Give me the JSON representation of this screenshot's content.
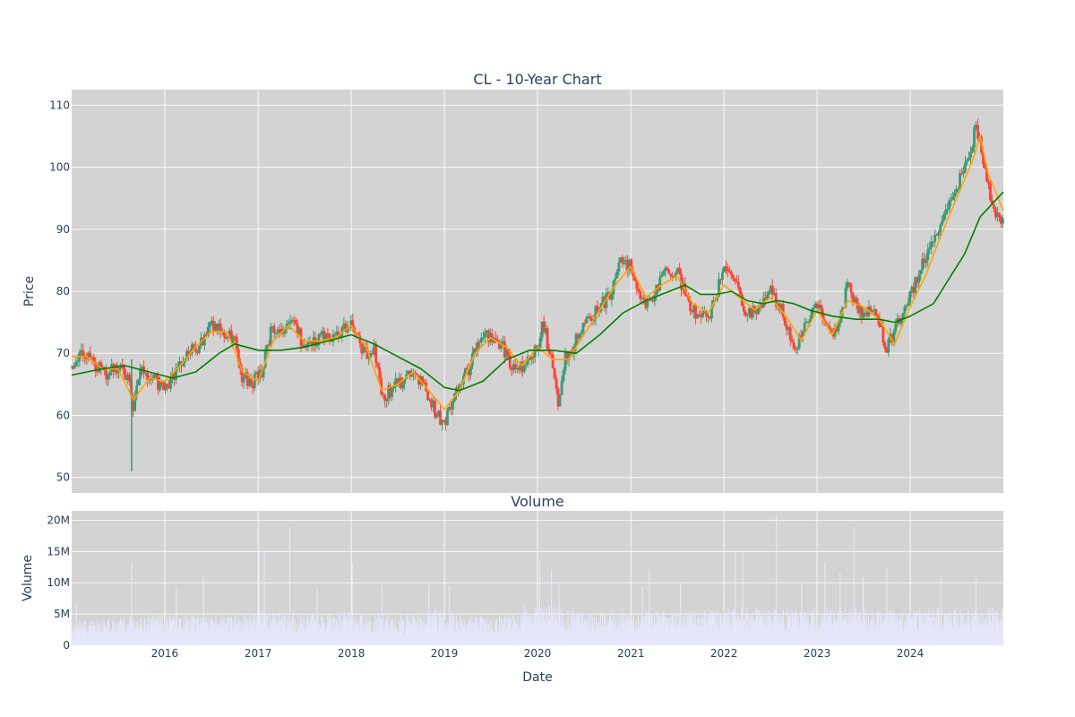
{
  "chart_data": [
    {
      "type": "candlestick",
      "title": "CL - 10-Year Chart",
      "xlabel": "",
      "ylabel": "Price",
      "xlim": [
        "2015-01-01",
        "2024-12-31"
      ],
      "ylim": [
        47.5,
        112.5
      ],
      "yticks": [
        50,
        60,
        70,
        80,
        90,
        100,
        110
      ],
      "xticks": [
        "2016",
        "2017",
        "2018",
        "2019",
        "2020",
        "2021",
        "2022",
        "2023",
        "2024"
      ],
      "grid": true,
      "legend": "none",
      "colors": {
        "up": "#3d9970",
        "down": "#ff4136",
        "ma_short": "#ffa500",
        "ma_long": "#008000",
        "background": "#d3d3d3"
      },
      "price_path": [
        [
          "2015-01-01",
          68
        ],
        [
          "2015-02-15",
          70
        ],
        [
          "2015-04-01",
          68.5
        ],
        [
          "2015-05-15",
          66.5
        ],
        [
          "2015-07-01",
          68
        ],
        [
          "2015-08-15",
          66
        ],
        [
          "2015-08-25",
          61
        ],
        [
          "2015-10-01",
          67
        ],
        [
          "2015-11-15",
          66
        ],
        [
          "2016-01-01",
          64
        ],
        [
          "2016-02-15",
          67
        ],
        [
          "2016-04-01",
          70
        ],
        [
          "2016-05-15",
          71
        ],
        [
          "2016-07-01",
          74.5
        ],
        [
          "2016-08-15",
          74
        ],
        [
          "2016-10-01",
          72
        ],
        [
          "2016-11-01",
          66
        ],
        [
          "2016-12-15",
          65.5
        ],
        [
          "2017-01-15",
          67
        ],
        [
          "2017-02-15",
          73
        ],
        [
          "2017-04-01",
          74
        ],
        [
          "2017-05-15",
          75.5
        ],
        [
          "2017-07-01",
          71
        ],
        [
          "2017-08-15",
          72
        ],
        [
          "2017-10-01",
          73
        ],
        [
          "2017-11-15",
          72.5
        ],
        [
          "2018-01-01",
          75.5
        ],
        [
          "2018-02-15",
          70
        ],
        [
          "2018-04-01",
          70.5
        ],
        [
          "2018-05-01",
          63
        ],
        [
          "2018-07-01",
          65
        ],
        [
          "2018-09-01",
          67
        ],
        [
          "2018-10-15",
          65
        ],
        [
          "2018-12-01",
          60
        ],
        [
          "2019-01-01",
          59
        ],
        [
          "2019-02-15",
          64
        ],
        [
          "2019-04-01",
          67
        ],
        [
          "2019-05-15",
          72
        ],
        [
          "2019-07-01",
          73
        ],
        [
          "2019-08-15",
          71.5
        ],
        [
          "2019-10-01",
          67
        ],
        [
          "2019-11-15",
          68.5
        ],
        [
          "2020-01-01",
          70.5
        ],
        [
          "2020-01-20",
          75
        ],
        [
          "2020-02-15",
          71
        ],
        [
          "2020-03-20",
          62
        ],
        [
          "2020-04-15",
          69
        ],
        [
          "2020-06-01",
          72
        ],
        [
          "2020-07-15",
          75
        ],
        [
          "2020-09-01",
          78
        ],
        [
          "2020-10-15",
          79
        ],
        [
          "2020-11-20",
          85
        ],
        [
          "2021-01-01",
          84
        ],
        [
          "2021-02-15",
          78
        ],
        [
          "2021-04-01",
          79
        ],
        [
          "2021-05-15",
          83
        ],
        [
          "2021-07-01",
          83
        ],
        [
          "2021-08-15",
          78
        ],
        [
          "2021-10-01",
          76
        ],
        [
          "2021-11-15",
          77
        ],
        [
          "2022-01-01",
          84
        ],
        [
          "2022-02-15",
          82
        ],
        [
          "2022-04-01",
          76
        ],
        [
          "2022-05-15",
          77
        ],
        [
          "2022-07-01",
          80
        ],
        [
          "2022-08-15",
          77
        ],
        [
          "2022-10-01",
          71
        ],
        [
          "2022-11-15",
          74
        ],
        [
          "2023-01-01",
          78
        ],
        [
          "2023-02-15",
          73
        ],
        [
          "2023-04-01",
          75
        ],
        [
          "2023-05-01",
          81
        ],
        [
          "2023-06-15",
          77
        ],
        [
          "2023-08-15",
          76
        ],
        [
          "2023-10-01",
          71
        ],
        [
          "2023-11-15",
          75
        ],
        [
          "2024-01-01",
          79
        ],
        [
          "2024-02-15",
          84
        ],
        [
          "2024-04-01",
          88
        ],
        [
          "2024-05-15",
          93
        ],
        [
          "2024-07-01",
          97
        ],
        [
          "2024-08-15",
          101
        ],
        [
          "2024-09-15",
          107
        ],
        [
          "2024-10-15",
          100
        ],
        [
          "2024-11-15",
          94
        ],
        [
          "2024-12-31",
          91
        ]
      ],
      "wicks": [
        [
          "2015-08-24",
          51,
          69
        ]
      ],
      "ma_short": [
        [
          "2015-01-01",
          69.5
        ],
        [
          "2015-03-01",
          69.5
        ],
        [
          "2015-05-01",
          67.5
        ],
        [
          "2015-07-01",
          67.5
        ],
        [
          "2015-09-01",
          62.5
        ],
        [
          "2015-11-01",
          66
        ],
        [
          "2016-01-01",
          65.5
        ],
        [
          "2016-03-01",
          68
        ],
        [
          "2016-05-01",
          71
        ],
        [
          "2016-07-01",
          73.5
        ],
        [
          "2016-09-01",
          73.5
        ],
        [
          "2016-11-01",
          67
        ],
        [
          "2017-01-01",
          65.5
        ],
        [
          "2017-03-01",
          72
        ],
        [
          "2017-05-01",
          74.5
        ],
        [
          "2017-07-01",
          72
        ],
        [
          "2017-09-01",
          72
        ],
        [
          "2017-11-01",
          72.5
        ],
        [
          "2018-01-01",
          74.5
        ],
        [
          "2018-03-01",
          71
        ],
        [
          "2018-05-01",
          64
        ],
        [
          "2018-07-01",
          65
        ],
        [
          "2018-09-01",
          67
        ],
        [
          "2018-11-01",
          64
        ],
        [
          "2019-01-01",
          61
        ],
        [
          "2019-03-01",
          64
        ],
        [
          "2019-05-01",
          70
        ],
        [
          "2019-07-01",
          72.5
        ],
        [
          "2019-09-01",
          71
        ],
        [
          "2019-11-01",
          68
        ],
        [
          "2020-01-01",
          71
        ],
        [
          "2020-03-01",
          69
        ],
        [
          "2020-05-01",
          69
        ],
        [
          "2020-07-01",
          73
        ],
        [
          "2020-09-01",
          77
        ],
        [
          "2020-11-01",
          81
        ],
        [
          "2021-01-01",
          84
        ],
        [
          "2021-03-01",
          79
        ],
        [
          "2021-05-01",
          81
        ],
        [
          "2021-07-01",
          82.5
        ],
        [
          "2021-09-01",
          78
        ],
        [
          "2021-11-01",
          76.5
        ],
        [
          "2022-01-01",
          81
        ],
        [
          "2022-03-01",
          79
        ],
        [
          "2022-05-01",
          77
        ],
        [
          "2022-07-01",
          79
        ],
        [
          "2022-09-01",
          76
        ],
        [
          "2022-11-01",
          72
        ],
        [
          "2023-01-01",
          77
        ],
        [
          "2023-03-01",
          73
        ],
        [
          "2023-05-01",
          78.5
        ],
        [
          "2023-07-01",
          77.5
        ],
        [
          "2023-09-01",
          75.5
        ],
        [
          "2023-11-01",
          71.5
        ],
        [
          "2024-01-01",
          77.5
        ],
        [
          "2024-03-01",
          82.5
        ],
        [
          "2024-05-01",
          89
        ],
        [
          "2024-07-01",
          95
        ],
        [
          "2024-09-01",
          101
        ],
        [
          "2024-10-01",
          105
        ],
        [
          "2024-11-01",
          99
        ],
        [
          "2024-12-31",
          93
        ]
      ],
      "ma_long": [
        [
          "2015-01-01",
          66.5
        ],
        [
          "2015-05-01",
          67.5
        ],
        [
          "2015-08-01",
          68
        ],
        [
          "2015-11-01",
          67
        ],
        [
          "2016-02-01",
          66
        ],
        [
          "2016-05-01",
          67
        ],
        [
          "2016-08-01",
          70
        ],
        [
          "2016-10-01",
          71.5
        ],
        [
          "2017-01-01",
          70.5
        ],
        [
          "2017-04-01",
          70.5
        ],
        [
          "2017-07-01",
          71
        ],
        [
          "2017-10-01",
          72
        ],
        [
          "2018-01-01",
          73
        ],
        [
          "2018-04-01",
          71.5
        ],
        [
          "2018-07-01",
          69.5
        ],
        [
          "2018-10-01",
          67.5
        ],
        [
          "2019-01-01",
          64.5
        ],
        [
          "2019-03-01",
          64
        ],
        [
          "2019-06-01",
          65.5
        ],
        [
          "2019-09-01",
          69
        ],
        [
          "2019-12-01",
          70.5
        ],
        [
          "2020-03-01",
          70.5
        ],
        [
          "2020-06-01",
          70
        ],
        [
          "2020-09-01",
          73
        ],
        [
          "2020-12-01",
          76.5
        ],
        [
          "2021-03-01",
          78.5
        ],
        [
          "2021-06-01",
          80
        ],
        [
          "2021-08-01",
          81
        ],
        [
          "2021-10-01",
          79.5
        ],
        [
          "2021-12-01",
          79.5
        ],
        [
          "2022-02-01",
          80
        ],
        [
          "2022-04-01",
          78.5
        ],
        [
          "2022-06-01",
          78
        ],
        [
          "2022-08-01",
          78.5
        ],
        [
          "2022-10-01",
          78
        ],
        [
          "2022-12-01",
          77
        ],
        [
          "2023-03-01",
          76
        ],
        [
          "2023-06-01",
          75.5
        ],
        [
          "2023-09-01",
          75.5
        ],
        [
          "2023-11-01",
          75
        ],
        [
          "2024-01-01",
          76
        ],
        [
          "2024-04-01",
          78
        ],
        [
          "2024-06-01",
          82
        ],
        [
          "2024-08-01",
          86
        ],
        [
          "2024-10-01",
          92
        ],
        [
          "2024-12-31",
          96
        ]
      ]
    },
    {
      "type": "bar",
      "title": "Volume",
      "xlabel": "Date",
      "ylabel": "Volume",
      "xlim": [
        "2015-01-01",
        "2024-12-31"
      ],
      "ylim": [
        0,
        21500000
      ],
      "yticks": [
        0,
        5000000,
        10000000,
        15000000,
        20000000
      ],
      "ytick_labels": [
        "0",
        "5M",
        "10M",
        "15M",
        "20M"
      ],
      "xticks": [
        "2016",
        "2017",
        "2018",
        "2019",
        "2020",
        "2021",
        "2022",
        "2023",
        "2024"
      ],
      "grid": true,
      "colors": {
        "bars": "#e6e6fa"
      },
      "volume_profile": [
        [
          "2015-01-01",
          3000000
        ],
        [
          "2015-07-01",
          3300000
        ],
        [
          "2016-01-01",
          3700000
        ],
        [
          "2016-07-01",
          3500000
        ],
        [
          "2017-01-01",
          4200000
        ],
        [
          "2017-07-01",
          3800000
        ],
        [
          "2018-01-01",
          4000000
        ],
        [
          "2018-07-01",
          3600000
        ],
        [
          "2018-12-01",
          4500000
        ],
        [
          "2019-07-01",
          3300000
        ],
        [
          "2020-03-01",
          5000000
        ],
        [
          "2020-07-01",
          3800000
        ],
        [
          "2021-01-01",
          4300000
        ],
        [
          "2021-07-01",
          4000000
        ],
        [
          "2022-03-01",
          4600000
        ],
        [
          "2022-08-01",
          4300000
        ],
        [
          "2023-03-01",
          4600000
        ],
        [
          "2023-09-01",
          4300000
        ],
        [
          "2024-03-01",
          4500000
        ],
        [
          "2024-12-31",
          4600000
        ]
      ],
      "spikes": [
        [
          "2015-01-20",
          6700000
        ],
        [
          "2015-08-24",
          13200000
        ],
        [
          "2016-02-15",
          9200000
        ],
        [
          "2016-06-01",
          11000000
        ],
        [
          "2017-01-05",
          14800000
        ],
        [
          "2017-01-25",
          14900000
        ],
        [
          "2017-05-05",
          18800000
        ],
        [
          "2017-08-20",
          9000000
        ],
        [
          "2018-01-05",
          13100000
        ],
        [
          "2018-05-01",
          9600000
        ],
        [
          "2018-11-01",
          9700000
        ],
        [
          "2019-01-20",
          9500000
        ],
        [
          "2019-11-10",
          6500000
        ],
        [
          "2020-01-10",
          13600000
        ],
        [
          "2020-02-25",
          12000000
        ],
        [
          "2020-03-25",
          10000000
        ],
        [
          "2021-02-15",
          9400000
        ],
        [
          "2021-03-15",
          12000000
        ],
        [
          "2021-07-15",
          10000000
        ],
        [
          "2022-02-15",
          14800000
        ],
        [
          "2022-03-15",
          14900000
        ],
        [
          "2022-07-25",
          20800000
        ],
        [
          "2022-11-01",
          10000000
        ],
        [
          "2023-02-01",
          13300000
        ],
        [
          "2023-04-01",
          11500000
        ],
        [
          "2023-05-25",
          19000000
        ],
        [
          "2023-07-01",
          11000000
        ],
        [
          "2023-10-01",
          12500000
        ],
        [
          "2024-05-01",
          11000000
        ],
        [
          "2024-09-15",
          10800000
        ]
      ]
    }
  ]
}
